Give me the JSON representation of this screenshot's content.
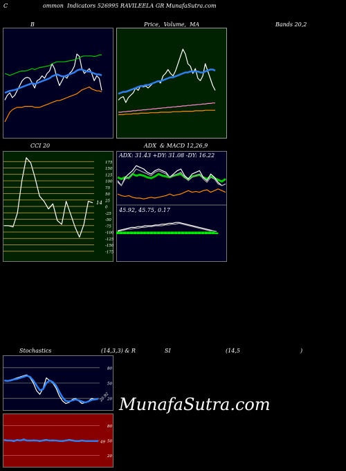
{
  "header": {
    "title": "C                    ommon  Indicators 526995 RAVILEELA GR MunafaSutra.com"
  },
  "labels": {
    "bands_left": "B",
    "price_label": "Price,  Volume,  MA",
    "bands_right": "Bands 20,2",
    "cci_label": "CCI 20",
    "adx_label": "ADX  & MACD 12,26,9",
    "stoch_label": "Stochastics",
    "stoch_params": "(14,3,3) & R",
    "rsi_label": "SI",
    "rsi_params": "(14,5",
    "rsi_close": ")"
  },
  "watermark": "MunafaSutra.com",
  "colors": {
    "dark_navy": "#000022",
    "green_bg": "#002200",
    "red_bg": "#880000",
    "blue": "#2f7ff0",
    "green_line": "#00cc00",
    "orange": "#ff8c00",
    "pink": "#ff88cc"
  },
  "chart_data": [
    {
      "type": "line",
      "name": "bollinger-bands",
      "title": "",
      "x": [
        0,
        1,
        2,
        3,
        4,
        5,
        6,
        7,
        8,
        9,
        10,
        11,
        12,
        13,
        14,
        15,
        16,
        17,
        18,
        19,
        20,
        21,
        22,
        23,
        24,
        25,
        26,
        27,
        28,
        29,
        30,
        31,
        32,
        33,
        34,
        35,
        36,
        37,
        38,
        39
      ],
      "series": [
        {
          "name": "",
          "color": "#ffffff",
          "values": [
            -35,
            -25,
            -20,
            -30,
            -25,
            -15,
            -5,
            5,
            10,
            12,
            10,
            0,
            -10,
            5,
            8,
            15,
            10,
            20,
            25,
            40,
            30,
            10,
            -5,
            5,
            15,
            10,
            20,
            25,
            35,
            60,
            55,
            30,
            20,
            25,
            30,
            20,
            5,
            15,
            10,
            -15
          ]
        },
        {
          "name": "",
          "color": "#2f7ff0",
          "values": [
            -20,
            -18,
            -16,
            -15,
            -14,
            -12,
            -10,
            -8,
            -6,
            -4,
            -2,
            0,
            -2,
            0,
            2,
            4,
            6,
            8,
            10,
            14,
            16,
            18,
            16,
            14,
            14,
            16,
            18,
            20,
            22,
            26,
            28,
            28,
            26,
            24,
            24,
            22,
            20,
            18,
            18,
            16
          ]
        },
        {
          "name": "",
          "color": "#00cc00",
          "values": [
            20,
            18,
            16,
            18,
            20,
            22,
            24,
            25,
            25,
            26,
            28,
            30,
            28,
            30,
            32,
            33,
            34,
            35,
            36,
            40,
            42,
            44,
            44,
            44,
            44,
            45,
            46,
            47,
            48,
            50,
            52,
            55,
            56,
            56,
            56,
            56,
            55,
            56,
            58,
            58
          ]
        },
        {
          "name": "",
          "color": "#ff8c00",
          "values": [
            -80,
            -70,
            -60,
            -55,
            -52,
            -50,
            -50,
            -50,
            -48,
            -48,
            -48,
            -48,
            -50,
            -50,
            -50,
            -48,
            -46,
            -44,
            -42,
            -40,
            -38,
            -36,
            -36,
            -34,
            -32,
            -30,
            -28,
            -26,
            -24,
            -22,
            -18,
            -14,
            -12,
            -10,
            -8,
            -12,
            -14,
            -16,
            -16,
            -18
          ]
        }
      ],
      "ylim": [
        -100,
        100
      ]
    },
    {
      "type": "line",
      "name": "price-volume-ma",
      "title": "",
      "x": [
        0,
        1,
        2,
        3,
        4,
        5,
        6,
        7,
        8,
        9,
        10,
        11,
        12,
        13,
        14,
        15,
        16,
        17,
        18,
        19,
        20,
        21,
        22,
        23,
        24,
        25,
        26,
        27,
        28,
        29,
        30,
        31,
        32,
        33,
        34,
        35,
        36,
        37,
        38,
        39
      ],
      "series": [
        {
          "name": "",
          "color": "#ffffff",
          "values": [
            -35,
            -30,
            -28,
            -40,
            -30,
            -25,
            -20,
            -10,
            -15,
            -5,
            -8,
            -6,
            -10,
            -5,
            0,
            2,
            5,
            0,
            15,
            20,
            28,
            20,
            15,
            25,
            40,
            55,
            70,
            60,
            40,
            35,
            20,
            30,
            10,
            5,
            15,
            40,
            25,
            10,
            -5,
            -15
          ]
        },
        {
          "name": "",
          "color": "#2f7ff0",
          "values": [
            -22,
            -20,
            -18,
            -18,
            -16,
            -14,
            -12,
            -10,
            -8,
            -6,
            -6,
            -4,
            -4,
            -2,
            0,
            2,
            4,
            4,
            6,
            8,
            10,
            12,
            12,
            14,
            16,
            18,
            20,
            22,
            22,
            24,
            24,
            24,
            24,
            22,
            22,
            24,
            26,
            28,
            28,
            26
          ]
        },
        {
          "name": "",
          "color": "#ff88cc",
          "values": [
            -60,
            -60,
            -59,
            -59,
            -58,
            -58,
            -57,
            -57,
            -56,
            -56,
            -55,
            -55,
            -54,
            -54,
            -53,
            -53,
            -52,
            -52,
            -51,
            -51,
            -50,
            -50,
            -49,
            -49,
            -48,
            -48,
            -47,
            -47,
            -46,
            -46,
            -45,
            -45,
            -44,
            -44,
            -43,
            -43,
            -42,
            -42,
            -41,
            -41
          ]
        },
        {
          "name": "",
          "color": "#ff8c00",
          "values": [
            -65,
            -65,
            -65,
            -64,
            -64,
            -64,
            -63,
            -63,
            -63,
            -62,
            -62,
            -62,
            -62,
            -61,
            -61,
            -61,
            -61,
            -60,
            -60,
            -60,
            -60,
            -60,
            -59,
            -59,
            -59,
            -59,
            -58,
            -58,
            -58,
            -58,
            -58,
            -57,
            -57,
            -57,
            -57,
            -56,
            -56,
            -56,
            -56,
            -56
          ]
        }
      ],
      "ylim": [
        -100,
        100
      ]
    },
    {
      "type": "line",
      "name": "cci",
      "title": "",
      "value_label": "14",
      "yticks": [
        175,
        150,
        125,
        100,
        75,
        50,
        25,
        0,
        -25,
        -50,
        -75,
        -100,
        -125,
        -150,
        -175
      ],
      "x": [
        0,
        1,
        2,
        3,
        4,
        5,
        6,
        7,
        8,
        9,
        10,
        11,
        12,
        13,
        14,
        15,
        16,
        17,
        18,
        19,
        20
      ],
      "series": [
        {
          "name": "",
          "color": "#ffffff",
          "values": [
            -75,
            -75,
            -80,
            -25,
            100,
            190,
            170,
            110,
            40,
            20,
            -10,
            10,
            -55,
            -70,
            20,
            -30,
            -80,
            -120,
            -70,
            20,
            14
          ]
        }
      ],
      "ylim": [
        -200,
        200
      ]
    },
    {
      "type": "line",
      "name": "adx",
      "title": "",
      "readout": "ADX: 31.43  +DY: 31.08  -DY: 16.22",
      "x": [
        0,
        1,
        2,
        3,
        4,
        5,
        6,
        7,
        8,
        9,
        10,
        11,
        12,
        13,
        14,
        15,
        16,
        17,
        18,
        19,
        20,
        21,
        22,
        23,
        24,
        25,
        26,
        27,
        28,
        29
      ],
      "series": [
        {
          "name": "",
          "color": "#00cc00",
          "values": [
            30,
            28,
            30,
            29,
            34,
            32,
            33,
            32,
            30,
            29,
            31,
            34,
            32,
            31,
            30,
            32,
            33,
            34,
            30,
            28,
            31,
            32,
            33,
            30,
            28,
            31,
            29,
            27,
            25,
            28
          ]
        },
        {
          "name": "",
          "color": "#ffffff",
          "values": [
            26,
            20,
            30,
            34,
            38,
            44,
            42,
            40,
            36,
            34,
            38,
            40,
            38,
            36,
            30,
            34,
            38,
            40,
            32,
            28,
            34,
            36,
            38,
            30,
            26,
            34,
            30,
            24,
            20,
            22
          ]
        },
        {
          "name": "",
          "color": "#aaaaaa",
          "values": [
            24,
            20,
            28,
            30,
            34,
            40,
            38,
            36,
            34,
            32,
            36,
            38,
            36,
            34,
            30,
            32,
            34,
            36,
            30,
            26,
            30,
            32,
            34,
            28,
            24,
            30,
            28,
            22,
            20,
            22
          ]
        },
        {
          "name": "",
          "color": "#ff8c00",
          "values": [
            10,
            8,
            7,
            8,
            6,
            5,
            5,
            4,
            5,
            6,
            5,
            6,
            7,
            8,
            10,
            8,
            9,
            10,
            12,
            14,
            12,
            13,
            12,
            14,
            15,
            12,
            14,
            16,
            14,
            12
          ]
        }
      ],
      "ylim": [
        0,
        50
      ]
    },
    {
      "type": "bar",
      "name": "macd",
      "title": "",
      "readout": "45.92,  45.75,  0.17",
      "categories": [
        0,
        1,
        2,
        3,
        4,
        5,
        6,
        7,
        8,
        9,
        10,
        11,
        12,
        13,
        14,
        15,
        16,
        17,
        18,
        19,
        20,
        21,
        22,
        23,
        24,
        25,
        26,
        27,
        28,
        29
      ],
      "series": [
        {
          "name": "",
          "color": "#ffffff",
          "values": [
            4,
            5,
            6,
            7,
            8,
            8,
            9,
            9,
            10,
            10,
            10,
            11,
            11,
            12,
            12,
            13,
            13,
            14,
            14,
            13,
            12,
            11,
            10,
            9,
            8,
            7,
            6,
            5,
            4,
            3
          ]
        },
        {
          "name": "",
          "color": "#aaaaaa",
          "values": [
            3,
            4,
            5,
            6,
            6,
            7,
            7,
            8,
            8,
            9,
            9,
            10,
            10,
            10,
            11,
            11,
            12,
            12,
            13,
            12,
            11,
            10,
            9,
            8,
            7,
            6,
            5,
            4,
            4,
            3
          ]
        },
        {
          "name": "",
          "color": "#00ee00",
          "values": [
            3,
            3,
            3,
            3,
            3,
            3,
            3,
            3,
            3,
            3,
            3,
            3,
            3,
            3,
            3,
            3,
            3,
            3,
            3,
            3,
            3,
            3,
            3,
            3,
            3,
            3,
            3,
            3,
            3,
            2
          ]
        }
      ],
      "ylim": [
        0,
        20
      ]
    },
    {
      "type": "line",
      "name": "stochastics",
      "title": "",
      "yticks": [
        80,
        50,
        20
      ],
      "value_label": "20.92",
      "x": [
        0,
        1,
        2,
        3,
        4,
        5,
        6,
        7,
        8,
        9,
        10,
        11,
        12,
        13,
        14,
        15,
        16,
        17,
        18,
        19,
        20,
        21,
        22,
        23,
        24,
        25,
        26,
        27,
        28,
        29
      ],
      "series": [
        {
          "name": "",
          "color": "#ffffff",
          "values": [
            55,
            54,
            56,
            58,
            60,
            62,
            64,
            66,
            60,
            50,
            35,
            28,
            40,
            60,
            55,
            50,
            40,
            25,
            15,
            10,
            12,
            18,
            20,
            15,
            10,
            12,
            15,
            20,
            18,
            20
          ]
        },
        {
          "name": "",
          "color": "#2f7ff0",
          "values": [
            55,
            54,
            55,
            57,
            58,
            60,
            62,
            64,
            62,
            55,
            45,
            36,
            38,
            50,
            55,
            52,
            45,
            33,
            22,
            15,
            14,
            16,
            18,
            16,
            14,
            12,
            14,
            17,
            18,
            19
          ]
        }
      ],
      "ylim": [
        0,
        100
      ]
    },
    {
      "type": "line",
      "name": "rsi",
      "title": "",
      "yticks": [
        80,
        50,
        20
      ],
      "value_label": "49",
      "x": [
        0,
        1,
        2,
        3,
        4,
        5,
        6,
        7,
        8,
        9,
        10,
        11,
        12,
        13,
        14,
        15,
        16,
        17,
        18,
        19,
        20,
        21,
        22,
        23,
        24,
        25,
        26,
        27,
        28,
        29
      ],
      "series": [
        {
          "name": "",
          "color": "#ffffff",
          "values": [
            52,
            50,
            50,
            48,
            52,
            50,
            53,
            50,
            49,
            51,
            50,
            48,
            51,
            52,
            50,
            51,
            50,
            49,
            48,
            50,
            52,
            51,
            49,
            48,
            50,
            49,
            48,
            49,
            48,
            49
          ]
        },
        {
          "name": "",
          "color": "#2f7ff0",
          "values": [
            51,
            50,
            50,
            49,
            51,
            50,
            52,
            50,
            50,
            50,
            50,
            49,
            50,
            51,
            50,
            50,
            50,
            49,
            49,
            50,
            51,
            50,
            49,
            49,
            50,
            49,
            49,
            49,
            49,
            49
          ]
        }
      ],
      "ylim": [
        0,
        100
      ]
    }
  ]
}
